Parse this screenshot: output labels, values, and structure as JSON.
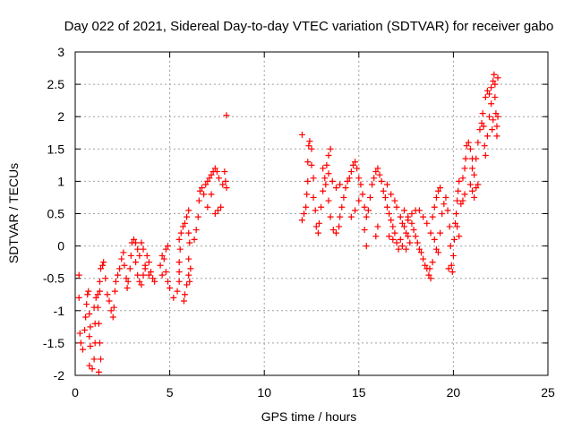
{
  "chart_data": {
    "type": "scatter",
    "title": "Day 022 of 2021, Sidereal Day-to-day VTEC variation (SDTVAR) for receiver gabo",
    "xlabel": "GPS time / hours",
    "ylabel": "SDTVAR / TECUs",
    "xlim": [
      0,
      25
    ],
    "ylim": [
      -2,
      3
    ],
    "xticks": [
      0,
      5,
      10,
      15,
      20,
      25
    ],
    "yticks": [
      -2,
      -1.5,
      -1,
      -0.5,
      0,
      0.5,
      1,
      1.5,
      2,
      2.5,
      3
    ],
    "xtick_labels": [
      "0",
      "5",
      "10",
      "15",
      "20",
      "25"
    ],
    "ytick_labels": [
      "-2",
      "-1.5",
      "-1",
      "-0.5",
      "0",
      "0.5",
      "1",
      "1.5",
      "2",
      "2.5",
      "3"
    ],
    "grid": true,
    "marker": "+",
    "marker_color": "#ff0000",
    "series": [
      {
        "name": "SDTVAR",
        "points": [
          [
            0.2,
            -0.45
          ],
          [
            0.2,
            -0.8
          ],
          [
            0.25,
            -1.35
          ],
          [
            0.3,
            -1.5
          ],
          [
            0.4,
            -1.6
          ],
          [
            0.5,
            -1.3
          ],
          [
            0.55,
            -1.1
          ],
          [
            0.6,
            -0.9
          ],
          [
            0.65,
            -0.75
          ],
          [
            0.7,
            -0.7
          ],
          [
            0.75,
            -1.05
          ],
          [
            0.8,
            -1.25
          ],
          [
            0.75,
            -1.4
          ],
          [
            0.8,
            -1.55
          ],
          [
            0.75,
            -1.85
          ],
          [
            0.9,
            -1.9
          ],
          [
            1.0,
            -1.75
          ],
          [
            1.05,
            -1.5
          ],
          [
            1.05,
            -1.2
          ],
          [
            1.0,
            -0.95
          ],
          [
            1.1,
            -0.8
          ],
          [
            1.2,
            -0.75
          ],
          [
            1.3,
            -0.7
          ],
          [
            1.2,
            -0.95
          ],
          [
            1.25,
            -1.2
          ],
          [
            1.3,
            -1.5
          ],
          [
            1.35,
            -1.75
          ],
          [
            1.25,
            -1.95
          ],
          [
            1.3,
            -0.55
          ],
          [
            1.35,
            -0.35
          ],
          [
            1.45,
            -0.3
          ],
          [
            1.5,
            -0.25
          ],
          [
            1.6,
            -0.5
          ],
          [
            1.7,
            -0.75
          ],
          [
            1.8,
            -0.85
          ],
          [
            1.9,
            -1.0
          ],
          [
            2.0,
            -1.1
          ],
          [
            2.05,
            -0.95
          ],
          [
            2.1,
            -0.7
          ],
          [
            2.15,
            -0.55
          ],
          [
            2.25,
            -0.45
          ],
          [
            2.35,
            -0.35
          ],
          [
            2.45,
            -0.2
          ],
          [
            2.55,
            -0.1
          ],
          [
            2.6,
            -0.3
          ],
          [
            2.7,
            -0.5
          ],
          [
            2.75,
            -0.65
          ],
          [
            2.8,
            -0.55
          ],
          [
            2.9,
            -0.35
          ],
          [
            2.95,
            -0.15
          ],
          [
            3.0,
            0.05
          ],
          [
            3.1,
            0.1
          ],
          [
            3.2,
            0.05
          ],
          [
            3.3,
            -0.05
          ],
          [
            3.2,
            -0.25
          ],
          [
            3.3,
            -0.45
          ],
          [
            3.4,
            -0.55
          ],
          [
            3.5,
            -0.6
          ],
          [
            3.6,
            -0.45
          ],
          [
            3.7,
            -0.3
          ],
          [
            3.8,
            -0.15
          ],
          [
            3.9,
            -0.25
          ],
          [
            4.0,
            -0.4
          ],
          [
            4.1,
            -0.5
          ],
          [
            4.2,
            -0.55
          ],
          [
            3.6,
            -0.05
          ],
          [
            3.5,
            0.05
          ],
          [
            3.4,
            -0.15
          ],
          [
            3.7,
            -0.35
          ],
          [
            3.9,
            -0.45
          ],
          [
            4.5,
            -0.3
          ],
          [
            4.6,
            -0.15
          ],
          [
            4.8,
            -0.05
          ],
          [
            4.9,
            0.0
          ],
          [
            4.7,
            -0.2
          ],
          [
            4.8,
            -0.4
          ],
          [
            4.9,
            -0.55
          ],
          [
            5.0,
            -0.65
          ],
          [
            4.6,
            -0.45
          ],
          [
            5.2,
            -0.8
          ],
          [
            5.4,
            -0.7
          ],
          [
            5.5,
            -0.55
          ],
          [
            5.5,
            -0.4
          ],
          [
            5.5,
            -0.25
          ],
          [
            5.55,
            -0.05
          ],
          [
            5.5,
            0.1
          ],
          [
            5.6,
            0.2
          ],
          [
            5.7,
            0.3
          ],
          [
            5.8,
            0.35
          ],
          [
            5.9,
            0.45
          ],
          [
            6.0,
            0.55
          ],
          [
            6.0,
            0.2
          ],
          [
            6.05,
            0.05
          ],
          [
            6.0,
            -0.2
          ],
          [
            6.0,
            -0.45
          ],
          [
            5.9,
            -0.6
          ],
          [
            5.8,
            -0.75
          ],
          [
            5.75,
            -0.85
          ],
          [
            6.05,
            -0.55
          ],
          [
            6.1,
            -0.35
          ],
          [
            6.3,
            0.1
          ],
          [
            6.4,
            0.25
          ],
          [
            6.5,
            0.45
          ],
          [
            6.55,
            0.7
          ],
          [
            6.6,
            0.85
          ],
          [
            6.7,
            0.9
          ],
          [
            6.8,
            0.8
          ],
          [
            6.9,
            0.95
          ],
          [
            7.0,
            1.0
          ],
          [
            7.1,
            1.05
          ],
          [
            7.2,
            1.1
          ],
          [
            7.3,
            1.15
          ],
          [
            7.4,
            1.2
          ],
          [
            7.5,
            1.15
          ],
          [
            7.6,
            1.05
          ],
          [
            7.0,
            0.6
          ],
          [
            7.2,
            0.8
          ],
          [
            7.4,
            0.5
          ],
          [
            7.55,
            0.55
          ],
          [
            7.7,
            0.6
          ],
          [
            7.8,
            0.95
          ],
          [
            7.9,
            1.15
          ],
          [
            7.95,
            1.0
          ],
          [
            8.0,
            0.9
          ],
          [
            8.0,
            2.02
          ],
          [
            12.0,
            1.72
          ],
          [
            12.0,
            0.4
          ],
          [
            12.1,
            0.5
          ],
          [
            12.2,
            0.6
          ],
          [
            12.25,
            0.8
          ],
          [
            12.3,
            1.0
          ],
          [
            12.3,
            1.3
          ],
          [
            12.35,
            1.55
          ],
          [
            12.4,
            1.62
          ],
          [
            12.5,
            1.5
          ],
          [
            12.5,
            1.25
          ],
          [
            12.6,
            1.05
          ],
          [
            12.6,
            0.75
          ],
          [
            12.7,
            0.55
          ],
          [
            12.75,
            0.3
          ],
          [
            12.85,
            0.2
          ],
          [
            12.9,
            0.35
          ],
          [
            13.0,
            0.6
          ],
          [
            13.1,
            0.85
          ],
          [
            13.2,
            1.05
          ],
          [
            13.3,
            1.25
          ],
          [
            13.4,
            1.4
          ],
          [
            13.5,
            1.5
          ],
          [
            13.1,
            1.2
          ],
          [
            13.25,
            0.95
          ],
          [
            13.4,
            0.7
          ],
          [
            13.5,
            0.45
          ],
          [
            13.65,
            0.25
          ],
          [
            13.8,
            0.2
          ],
          [
            13.95,
            0.3
          ],
          [
            14.0,
            0.45
          ],
          [
            14.1,
            0.6
          ],
          [
            14.2,
            0.75
          ],
          [
            14.3,
            0.9
          ],
          [
            14.4,
            1.0
          ],
          [
            14.5,
            1.05
          ],
          [
            14.0,
            0.95
          ],
          [
            13.8,
            0.9
          ],
          [
            13.6,
            1.0
          ],
          [
            13.4,
            1.12
          ],
          [
            14.6,
            1.15
          ],
          [
            14.7,
            1.25
          ],
          [
            14.8,
            1.3
          ],
          [
            14.9,
            1.2
          ],
          [
            15.0,
            1.05
          ],
          [
            15.1,
            0.95
          ],
          [
            15.2,
            0.8
          ],
          [
            15.3,
            0.6
          ],
          [
            15.4,
            0.45
          ],
          [
            15.5,
            0.55
          ],
          [
            15.0,
            0.7
          ],
          [
            14.8,
            0.55
          ],
          [
            14.6,
            0.45
          ],
          [
            15.3,
            0.25
          ],
          [
            15.4,
            0.0
          ],
          [
            15.6,
            0.75
          ],
          [
            15.7,
            0.95
          ],
          [
            15.8,
            1.05
          ],
          [
            15.9,
            1.15
          ],
          [
            16.0,
            1.2
          ],
          [
            16.1,
            1.1
          ],
          [
            16.2,
            1.0
          ],
          [
            16.3,
            0.85
          ],
          [
            16.0,
            0.3
          ],
          [
            15.9,
            0.15
          ],
          [
            16.4,
            0.75
          ],
          [
            16.5,
            0.6
          ],
          [
            16.6,
            0.5
          ],
          [
            16.7,
            0.4
          ],
          [
            16.8,
            0.3
          ],
          [
            16.9,
            0.2
          ],
          [
            17.0,
            0.05
          ],
          [
            17.1,
            -0.05
          ],
          [
            16.6,
            0.15
          ],
          [
            16.8,
            0.1
          ],
          [
            16.5,
            0.95
          ],
          [
            16.7,
            0.8
          ],
          [
            16.9,
            0.7
          ],
          [
            17.0,
            0.6
          ],
          [
            17.2,
            0.45
          ],
          [
            17.3,
            0.35
          ],
          [
            17.4,
            0.3
          ],
          [
            17.5,
            0.2
          ],
          [
            17.6,
            0.15
          ],
          [
            17.7,
            0.05
          ],
          [
            17.2,
            0.1
          ],
          [
            17.3,
            0.0
          ],
          [
            17.5,
            -0.05
          ],
          [
            17.4,
            0.55
          ],
          [
            17.6,
            0.45
          ],
          [
            17.8,
            0.35
          ],
          [
            17.9,
            0.25
          ],
          [
            18.0,
            0.15
          ],
          [
            18.1,
            0.05
          ],
          [
            18.2,
            -0.05
          ],
          [
            18.3,
            -0.1
          ],
          [
            18.4,
            -0.2
          ],
          [
            18.5,
            -0.3
          ],
          [
            18.6,
            -0.35
          ],
          [
            18.7,
            -0.45
          ],
          [
            18.8,
            -0.5
          ],
          [
            18.75,
            -0.35
          ],
          [
            18.9,
            -0.25
          ],
          [
            18.8,
            0.2
          ],
          [
            18.6,
            0.35
          ],
          [
            18.4,
            0.45
          ],
          [
            18.2,
            0.55
          ],
          [
            18.0,
            0.55
          ],
          [
            17.8,
            0.5
          ],
          [
            17.6,
            0.4
          ],
          [
            18.9,
            0.45
          ],
          [
            19.0,
            0.6
          ],
          [
            19.1,
            0.75
          ],
          [
            19.2,
            0.85
          ],
          [
            19.3,
            0.9
          ],
          [
            19.0,
            0.1
          ],
          [
            19.1,
            -0.05
          ],
          [
            19.2,
            -0.1
          ],
          [
            19.3,
            0.2
          ],
          [
            19.4,
            0.5
          ],
          [
            19.5,
            0.65
          ],
          [
            19.6,
            0.75
          ],
          [
            19.7,
            0.55
          ],
          [
            19.8,
            0.3
          ],
          [
            19.85,
            0.0
          ],
          [
            19.9,
            -0.3
          ],
          [
            19.95,
            -0.4
          ],
          [
            19.75,
            -0.35
          ],
          [
            20.0,
            -0.15
          ],
          [
            20.05,
            0.1
          ],
          [
            20.1,
            0.35
          ],
          [
            20.15,
            0.5
          ],
          [
            20.2,
            0.7
          ],
          [
            20.25,
            0.85
          ],
          [
            20.3,
            1.0
          ],
          [
            20.2,
            0.3
          ],
          [
            20.3,
            0.15
          ],
          [
            20.4,
            0.65
          ],
          [
            20.5,
            0.7
          ],
          [
            20.6,
            0.8
          ],
          [
            20.5,
            1.05
          ],
          [
            20.6,
            1.2
          ],
          [
            20.65,
            1.35
          ],
          [
            20.7,
            1.55
          ],
          [
            20.8,
            1.6
          ],
          [
            20.9,
            1.5
          ],
          [
            21.0,
            1.35
          ],
          [
            21.0,
            1.2
          ],
          [
            21.1,
            1.1
          ],
          [
            21.2,
            1.35
          ],
          [
            21.0,
            0.85
          ],
          [
            21.2,
            0.9
          ],
          [
            21.3,
            0.95
          ],
          [
            21.1,
            0.75
          ],
          [
            20.9,
            0.95
          ],
          [
            21.3,
            1.6
          ],
          [
            21.4,
            1.8
          ],
          [
            21.5,
            1.9
          ],
          [
            21.55,
            2.05
          ],
          [
            21.6,
            1.85
          ],
          [
            21.65,
            1.55
          ],
          [
            21.7,
            1.4
          ],
          [
            21.8,
            1.7
          ],
          [
            21.9,
            2.0
          ],
          [
            22.0,
            2.2
          ],
          [
            21.7,
            2.3
          ],
          [
            21.8,
            2.4
          ],
          [
            21.9,
            2.35
          ],
          [
            22.0,
            2.45
          ],
          [
            22.1,
            2.55
          ],
          [
            22.15,
            2.65
          ],
          [
            22.2,
            2.5
          ],
          [
            22.2,
            2.3
          ],
          [
            22.25,
            2.05
          ],
          [
            22.3,
            1.85
          ],
          [
            22.3,
            1.7
          ],
          [
            22.35,
            2.0
          ],
          [
            22.35,
            2.6
          ],
          [
            22.1,
            1.95
          ],
          [
            22.05,
            1.8
          ]
        ]
      }
    ]
  }
}
